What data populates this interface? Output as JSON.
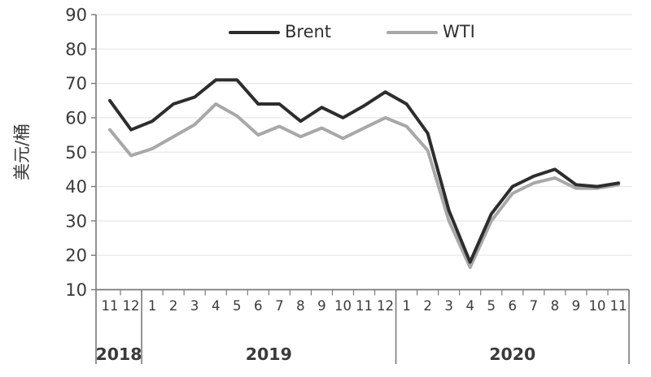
{
  "chart_data": {
    "type": "line",
    "title": "",
    "xlabel": "",
    "ylabel": "美元/桶",
    "ylim": [
      10,
      90
    ],
    "y_ticks": [
      10,
      20,
      30,
      40,
      50,
      60,
      70,
      80,
      90
    ],
    "grid": "horizontal",
    "legend_position": "top-center",
    "x_months": [
      "11",
      "12",
      "1",
      "2",
      "3",
      "4",
      "5",
      "6",
      "7",
      "8",
      "9",
      "10",
      "11",
      "12",
      "1",
      "2",
      "3",
      "4",
      "5",
      "6",
      "7",
      "8",
      "9",
      "10",
      "11"
    ],
    "year_groups": [
      {
        "label": "2018",
        "count": 2
      },
      {
        "label": "2019",
        "count": 12
      },
      {
        "label": "2020",
        "count": 11
      }
    ],
    "series": [
      {
        "name": "Brent",
        "color": "#2d2d2d",
        "values": [
          65,
          56.5,
          59,
          64,
          66,
          71,
          71,
          64,
          64,
          59,
          63,
          60,
          63.5,
          67.5,
          64,
          55.5,
          33,
          18,
          32,
          40,
          43,
          45,
          40.5,
          40,
          41
        ]
      },
      {
        "name": "WTI",
        "color": "#a8a8a8",
        "values": [
          56.5,
          49,
          51,
          54.5,
          58,
          64,
          60.5,
          55,
          57.5,
          54.5,
          57,
          54,
          57,
          60,
          57.5,
          50.5,
          30,
          16.5,
          30,
          38,
          41,
          42.5,
          39.5,
          39.5,
          40.5
        ]
      }
    ],
    "colors": {
      "axis": "#7a7a7a",
      "gridline": "#e7e7e7",
      "tick_text": "#3a3a3a"
    }
  }
}
